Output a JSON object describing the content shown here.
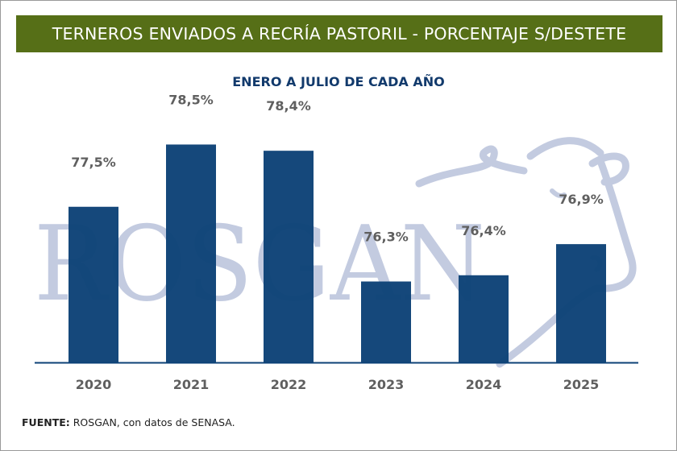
{
  "header": {
    "title": "TERNEROS ENVIADOS A RECRÍA PASTORIL - PORCENTAJE S/DESTETE",
    "subtitle": "ENERO A JULIO DE CADA AÑO"
  },
  "watermark": {
    "text": "ROSGAN",
    "icon": "bull-head-icon"
  },
  "footer": {
    "label": "FUENTE:",
    "text": "ROSGAN, con datos de SENASA."
  },
  "colors": {
    "title_bg": "#566f17",
    "bar": "#0d4277",
    "subtitle": "#123a6c",
    "label": "#5f5f5f",
    "watermark": "#c3cbe0"
  },
  "chart_data": {
    "type": "bar",
    "title": "TERNEROS ENVIADOS A RECRÍA PASTORIL - PORCENTAJE S/DESTETE",
    "subtitle": "ENERO A JULIO DE CADA AÑO",
    "categories": [
      "2020",
      "2021",
      "2022",
      "2023",
      "2024",
      "2025"
    ],
    "values": [
      77.5,
      78.5,
      78.4,
      76.3,
      76.4,
      76.9
    ],
    "data_labels": [
      "77,5%",
      "78,5%",
      "78,4%",
      "76,3%",
      "76,4%",
      "76,9%"
    ],
    "xlabel": "",
    "ylabel": "",
    "ylim": [
      75,
      79
    ],
    "unit": "%",
    "grid": false,
    "legend": "none"
  }
}
